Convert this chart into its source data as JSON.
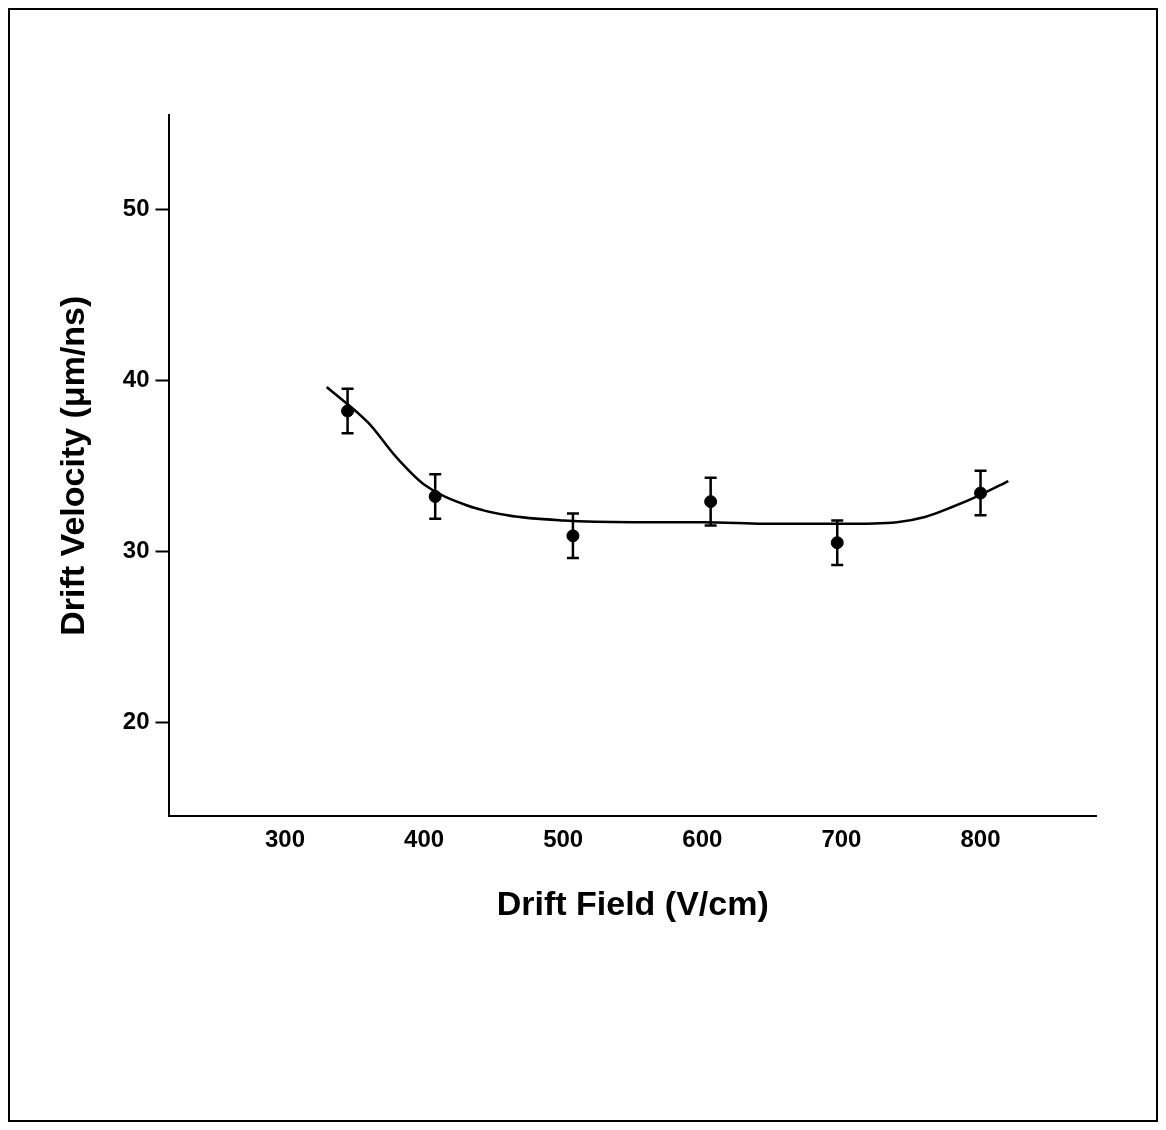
{
  "chart_data": {
    "type": "scatter",
    "xlabel": "Drift Field (V/cm)",
    "ylabel": "Drift Velocity (μm/ns)",
    "xlim": [
      217,
      883
    ],
    "xticks": [
      300,
      400,
      500,
      600,
      700,
      800
    ],
    "ylim": [
      14.5,
      55.5
    ],
    "yticks": [
      20,
      30,
      40,
      50
    ],
    "grid": false,
    "legend": false,
    "series": [
      {
        "type": "scatter",
        "color": "#000000",
        "marker": "circle",
        "x": [
          345,
          408,
          507,
          606,
          697,
          800
        ],
        "values": [
          38.2,
          33.2,
          30.9,
          32.9,
          30.5,
          33.4
        ],
        "errors": [
          1.3,
          1.3,
          1.3,
          1.4,
          1.3,
          1.3
        ]
      },
      {
        "type": "line",
        "color": "#000000",
        "marker": "none",
        "line_style": "solid",
        "x": [
          330,
          360,
          380,
          400,
          430,
          460,
          500,
          550,
          600,
          650,
          700,
          740,
          760,
          780,
          800,
          820
        ],
        "values": [
          39.6,
          37.5,
          35.5,
          33.9,
          32.7,
          32.1,
          31.8,
          31.7,
          31.7,
          31.6,
          31.6,
          31.7,
          32.0,
          32.6,
          33.3,
          34.1
        ]
      }
    ]
  }
}
